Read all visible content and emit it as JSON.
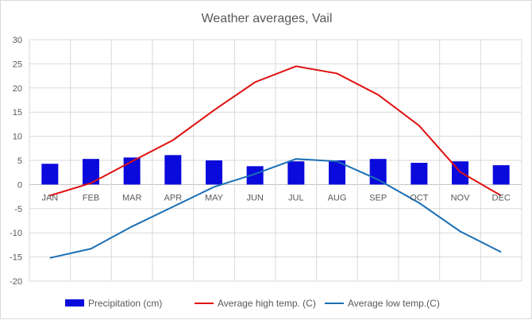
{
  "chart_data": {
    "type": "bar+line",
    "title": "Weather averages, Vail",
    "categories": [
      "JAN",
      "FEB",
      "MAR",
      "APR",
      "MAY",
      "JUN",
      "JUL",
      "AUG",
      "SEP",
      "OCT",
      "NOV",
      "DEC"
    ],
    "ylim": [
      -20,
      30
    ],
    "yticks": [
      30,
      25,
      20,
      15,
      10,
      5,
      0,
      -5,
      -10,
      -15,
      -20
    ],
    "grid": true,
    "legend_position": "bottom",
    "series": [
      {
        "name": "Precipitation (cm)",
        "type": "bar",
        "color": "#0a0adc",
        "values": [
          4.3,
          5.3,
          5.6,
          6.1,
          5.0,
          3.8,
          4.8,
          5.0,
          5.3,
          4.5,
          4.8,
          4.0
        ]
      },
      {
        "name": "Average high temp. (C)",
        "type": "line",
        "color": "#e01010",
        "values": [
          -2.3,
          0.3,
          4.8,
          9.2,
          15.4,
          21.2,
          24.5,
          23.0,
          18.6,
          12.2,
          2.6,
          -2.3
        ]
      },
      {
        "name": "Average low temp.(C)",
        "type": "line",
        "color": "#1a6fb5",
        "values": [
          -15.2,
          -13.3,
          -8.7,
          -4.6,
          -0.5,
          2.2,
          5.3,
          4.8,
          1.0,
          -3.8,
          -9.7,
          -14.0
        ]
      }
    ]
  }
}
